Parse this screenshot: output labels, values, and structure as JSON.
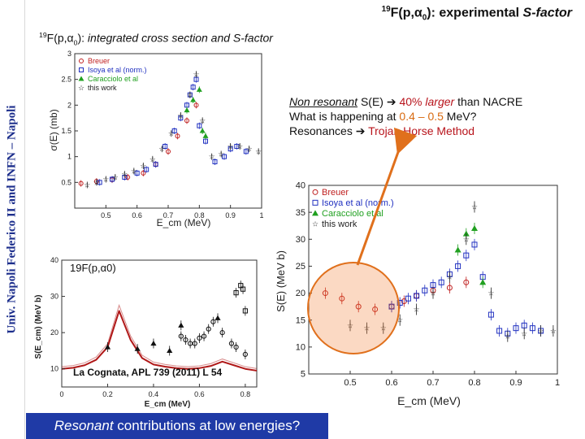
{
  "sidebar": {
    "text": "Univ. Napoli Federico II and INFN – Napoli"
  },
  "title": {
    "sup": "19",
    "pre": "F(p,",
    "alpha": "α",
    "sub0": "0",
    "post": "): experimental ",
    "ital": "S-factor"
  },
  "subtitle": {
    "sup": "19",
    "pre": "F(p,",
    "alpha": "α",
    "sub0": "0",
    "post": "): ",
    "ital": "integrated cross section and S-factor"
  },
  "notes": {
    "line1": {
      "a": "Non resonant",
      "b": " S(E) ",
      "arrow": "➔",
      "c": "40%",
      "d": "larger",
      "e": " than NACRE"
    },
    "line2": {
      "a": "What is happening at ",
      "b": "0.4 – 0.5",
      "c": " MeV?"
    },
    "line3": {
      "a": "Resonances ",
      "arrow": "➔",
      "b": " Trojan Horse Method"
    }
  },
  "bottom_box": {
    "ital": "Resonant",
    "rest": " contributions at low energies?"
  },
  "colors": {
    "accent_blue": "#1f3aa6",
    "sidebar_blue": "#1c2e8c",
    "red": "#b8141c",
    "orange": "#d86a10"
  },
  "chart_data": [
    {
      "type": "scatter",
      "title": "",
      "xlabel": "E_cm (MeV)",
      "ylabel": "σ(E) (mb)",
      "xlim": [
        0.4,
        1.0
      ],
      "ylim": [
        0,
        3
      ],
      "xticks": [
        "0.5",
        "0.6",
        "0.7",
        "0.8",
        "0.9",
        "1"
      ],
      "yticks": [
        "0.5",
        "1",
        "1.5",
        "2",
        "2.5",
        "3"
      ],
      "legend": [
        "Breuer",
        "Isoya et al (norm.)",
        "Caracciolo et al",
        "this work"
      ],
      "legend_position": "top-left",
      "series": [
        {
          "name": "Breuer",
          "color": "#c02020",
          "marker": "circle",
          "x": [
            0.42,
            0.47,
            0.52,
            0.57,
            0.62,
            0.66,
            0.7,
            0.73,
            0.76,
            0.79
          ],
          "y": [
            0.48,
            0.52,
            0.55,
            0.6,
            0.68,
            0.85,
            1.1,
            1.4,
            1.7,
            2.0
          ]
        },
        {
          "name": "Isoya et al (norm.)",
          "color": "#2030c0",
          "marker": "square",
          "x": [
            0.48,
            0.52,
            0.56,
            0.6,
            0.63,
            0.66,
            0.69,
            0.72,
            0.74,
            0.76,
            0.77,
            0.78,
            0.79,
            0.8,
            0.82,
            0.85,
            0.88,
            0.9,
            0.92,
            0.95
          ],
          "y": [
            0.5,
            0.56,
            0.6,
            0.68,
            0.75,
            0.85,
            1.2,
            1.5,
            1.75,
            2.0,
            2.2,
            2.35,
            2.5,
            1.6,
            1.3,
            0.9,
            1.0,
            1.15,
            1.2,
            1.1
          ]
        },
        {
          "name": "Caracciolo et al",
          "color": "#20a020",
          "marker": "triangle",
          "x": [
            0.76,
            0.78,
            0.8,
            0.81,
            0.82
          ],
          "y": [
            1.9,
            2.1,
            2.3,
            1.5,
            1.4
          ]
        },
        {
          "name": "this work",
          "color": "#222222",
          "marker": "star",
          "x": [
            0.44,
            0.47,
            0.5,
            0.53,
            0.56,
            0.59,
            0.62,
            0.65,
            0.68,
            0.71,
            0.74,
            0.77,
            0.79,
            0.81,
            0.84,
            0.87,
            0.9,
            0.93,
            0.96,
            0.99
          ],
          "y": [
            0.45,
            0.5,
            0.56,
            0.6,
            0.66,
            0.72,
            0.82,
            0.95,
            1.15,
            1.45,
            1.8,
            2.2,
            2.6,
            1.7,
            1.0,
            1.05,
            1.2,
            1.2,
            1.15,
            1.1
          ]
        }
      ]
    },
    {
      "type": "scatter",
      "title": "19F(p,α0)",
      "xlabel": "E_cm (MeV)",
      "ylabel": "S(E_cm) (MeV b)",
      "xlim": [
        0,
        0.85
      ],
      "ylim": [
        5,
        40
      ],
      "xticks": [
        "0",
        "0.2",
        "0.4",
        "0.6",
        "0.8"
      ],
      "yticks": [
        "10",
        "20",
        "30",
        "40"
      ],
      "annotation": "La Cognata, APL 739 (2011) L 54",
      "series": [
        {
          "name": "",
          "color": "#b01818",
          "marker": "curve",
          "x": [
            0.0,
            0.05,
            0.1,
            0.15,
            0.2,
            0.25,
            0.3,
            0.35,
            0.4,
            0.45,
            0.5,
            0.55,
            0.6,
            0.65,
            0.7,
            0.75,
            0.8,
            0.85
          ],
          "y": [
            10,
            10.3,
            11,
            12.5,
            16,
            26,
            18,
            13,
            11.2,
            10.6,
            10.2,
            10,
            10.2,
            10.8,
            12,
            11,
            10,
            9.5
          ]
        },
        {
          "name": "",
          "color": "#111111",
          "marker": "circle",
          "x": [
            0.52,
            0.54,
            0.56,
            0.58,
            0.6,
            0.62,
            0.64,
            0.66,
            0.7,
            0.74,
            0.76,
            0.8
          ],
          "y": [
            19,
            18,
            17,
            17,
            18.5,
            19,
            21,
            23,
            20,
            17,
            16,
            14
          ]
        },
        {
          "name": "",
          "color": "#111111",
          "marker": "triangle",
          "x": [
            0.2,
            0.33,
            0.4,
            0.47,
            0.52,
            0.68
          ],
          "y": [
            16,
            15.5,
            17,
            15,
            22,
            24
          ]
        },
        {
          "name": "",
          "color": "#111111",
          "marker": "square",
          "x": [
            0.76,
            0.78,
            0.79,
            0.8
          ],
          "y": [
            31,
            33,
            32,
            26
          ]
        }
      ]
    },
    {
      "type": "scatter",
      "title": "",
      "xlabel": "E_cm (MeV)",
      "ylabel": "S(E) (MeV b)",
      "xlim": [
        0.4,
        1.0
      ],
      "ylim": [
        5,
        40
      ],
      "xticks": [
        "0.5",
        "0.6",
        "0.7",
        "0.8",
        "0.9",
        "1"
      ],
      "yticks": [
        "5",
        "10",
        "15",
        "20",
        "25",
        "30",
        "35",
        "40"
      ],
      "legend": [
        "Breuer",
        "Isoya et al (norm.)",
        "Caracciolo et al",
        "this work"
      ],
      "legend_position": "top-left",
      "series": [
        {
          "name": "Breuer",
          "color": "#c02020",
          "marker": "circle",
          "x": [
            0.44,
            0.48,
            0.52,
            0.56,
            0.6,
            0.63,
            0.66,
            0.7,
            0.74,
            0.78
          ],
          "y": [
            20,
            19,
            17.5,
            17,
            17.5,
            18.5,
            19.5,
            20.5,
            21,
            22
          ]
        },
        {
          "name": "Isoya et al (norm.)",
          "color": "#2030c0",
          "marker": "square",
          "x": [
            0.6,
            0.62,
            0.64,
            0.66,
            0.68,
            0.7,
            0.72,
            0.74,
            0.76,
            0.78,
            0.8,
            0.82,
            0.84,
            0.86,
            0.88,
            0.9,
            0.92,
            0.94,
            0.96
          ],
          "y": [
            17.5,
            18.2,
            19,
            19.5,
            20.5,
            21.5,
            22,
            23.5,
            25,
            27,
            29,
            23,
            16,
            13,
            12.5,
            13.5,
            14,
            13.5,
            13
          ]
        },
        {
          "name": "Caracciolo et al",
          "color": "#20a020",
          "marker": "triangle",
          "x": [
            0.76,
            0.78,
            0.8,
            0.82
          ],
          "y": [
            28,
            31,
            32,
            22
          ]
        },
        {
          "name": "this work",
          "color": "#222222",
          "marker": "star",
          "x": [
            0.5,
            0.54,
            0.58,
            0.62,
            0.66,
            0.7,
            0.74,
            0.78,
            0.8,
            0.84,
            0.88,
            0.92,
            0.96,
            0.99
          ],
          "y": [
            14,
            13.5,
            13.5,
            15,
            17,
            20,
            23,
            30,
            36,
            20,
            12,
            12.5,
            13,
            13
          ]
        }
      ]
    }
  ]
}
